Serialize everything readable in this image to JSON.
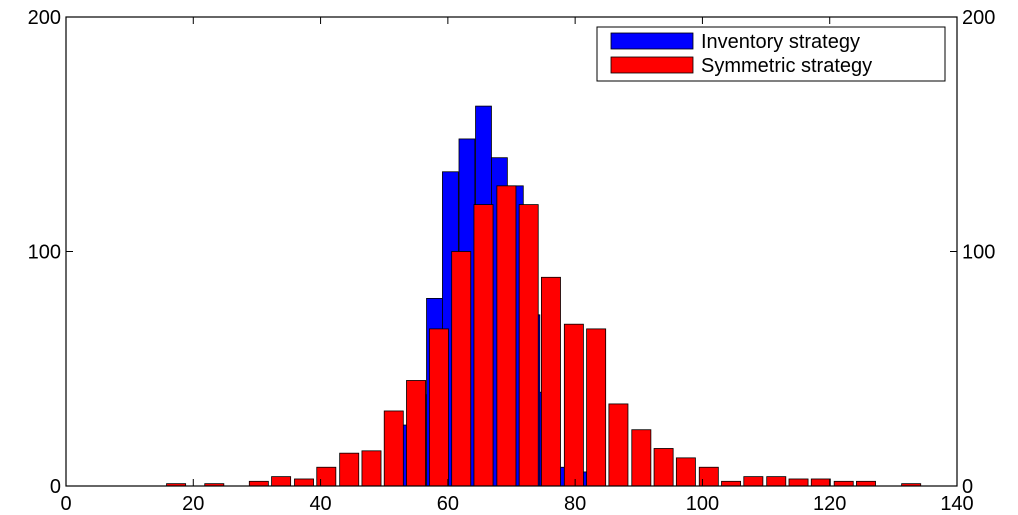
{
  "chart_data": {
    "type": "bar",
    "title": "",
    "xlabel": "",
    "ylabel": "",
    "xlim": [
      0,
      140
    ],
    "ylim": [
      0,
      200
    ],
    "x_ticks": [
      0,
      20,
      40,
      60,
      80,
      100,
      120,
      140
    ],
    "y_ticks": [
      0,
      100,
      200
    ],
    "grid": false,
    "legend_position": "top-right",
    "colors": {
      "inventory": "#0000ff",
      "symmetric": "#ff0000",
      "axes": "#000000"
    },
    "series": [
      {
        "name": "Inventory strategy",
        "color": "#0000ff",
        "bar_width": 2.5,
        "x": [
          48.2,
          52.3,
          55.3,
          57.9,
          60.4,
          63.0,
          65.6,
          68.1,
          70.6,
          73.2,
          75.7,
          78.3,
          80.8
        ],
        "values": [
          5,
          26,
          39,
          80,
          134,
          148,
          162,
          140,
          128,
          73,
          40,
          8,
          6
        ]
      },
      {
        "name": "Symmetric strategy",
        "color": "#ff0000",
        "bar_width": 3.0,
        "x": [
          17.3,
          23.3,
          30.3,
          33.8,
          37.4,
          40.9,
          44.5,
          48.0,
          51.5,
          55.0,
          58.6,
          62.1,
          65.6,
          69.2,
          72.7,
          76.2,
          79.8,
          83.3,
          86.8,
          90.4,
          93.9,
          97.4,
          101.0,
          104.5,
          108.0,
          111.6,
          115.1,
          118.6,
          122.2,
          125.7,
          132.8
        ],
        "values": [
          1,
          1,
          2,
          4,
          3,
          8,
          14,
          15,
          32,
          45,
          67,
          100,
          120,
          128,
          120,
          89,
          69,
          67,
          35,
          24,
          16,
          12,
          8,
          2,
          4,
          4,
          3,
          3,
          2,
          2,
          1
        ]
      }
    ]
  }
}
